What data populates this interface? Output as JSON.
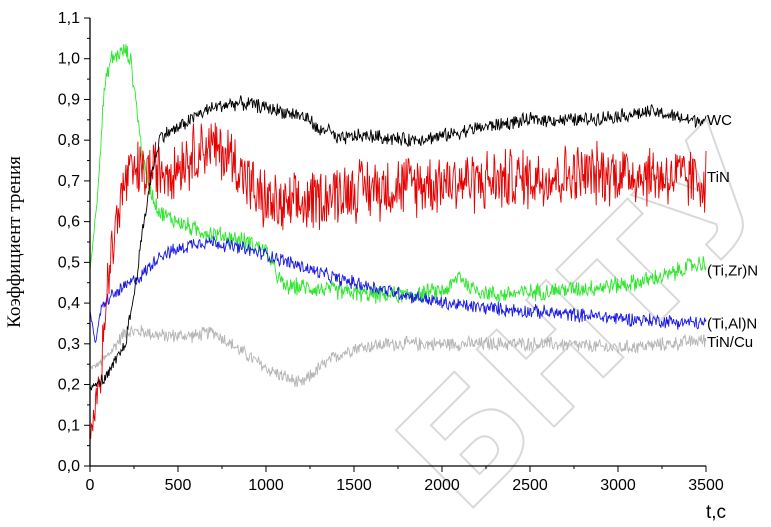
{
  "chart_data": {
    "type": "line",
    "xlabel": "t,c",
    "ylabel": "Коэффициент трения",
    "xlim": [
      0,
      3500
    ],
    "ylim": [
      0,
      1.1
    ],
    "xticks": [
      "0",
      "500",
      "1000",
      "1500",
      "2000",
      "2500",
      "3000",
      "3500"
    ],
    "yticks": [
      "0,0",
      "0,1",
      "0,2",
      "0,3",
      "0,4",
      "0,5",
      "0,6",
      "0,7",
      "0,8",
      "0,9",
      "1,0",
      "1,1"
    ],
    "grid": false,
    "watermark": "БНТУ",
    "series": [
      {
        "name": "WC",
        "color": "#000000",
        "noise": 0.02,
        "points": [
          [
            0,
            0.19
          ],
          [
            100,
            0.22
          ],
          [
            200,
            0.3
          ],
          [
            250,
            0.42
          ],
          [
            300,
            0.58
          ],
          [
            350,
            0.72
          ],
          [
            400,
            0.81
          ],
          [
            500,
            0.83
          ],
          [
            600,
            0.86
          ],
          [
            700,
            0.88
          ],
          [
            800,
            0.89
          ],
          [
            900,
            0.89
          ],
          [
            1000,
            0.88
          ],
          [
            1100,
            0.87
          ],
          [
            1200,
            0.86
          ],
          [
            1250,
            0.85
          ],
          [
            1300,
            0.82
          ],
          [
            1350,
            0.83
          ],
          [
            1400,
            0.8
          ],
          [
            1500,
            0.81
          ],
          [
            1600,
            0.81
          ],
          [
            1800,
            0.8
          ],
          [
            2000,
            0.81
          ],
          [
            2200,
            0.83
          ],
          [
            2500,
            0.85
          ],
          [
            2800,
            0.85
          ],
          [
            3000,
            0.86
          ],
          [
            3200,
            0.87
          ],
          [
            3400,
            0.85
          ],
          [
            3500,
            0.85
          ]
        ]
      },
      {
        "name": "TiN",
        "color": "#e60000",
        "noise": 0.09,
        "points": [
          [
            0,
            0.06
          ],
          [
            50,
            0.2
          ],
          [
            100,
            0.45
          ],
          [
            150,
            0.6
          ],
          [
            200,
            0.7
          ],
          [
            250,
            0.72
          ],
          [
            300,
            0.72
          ],
          [
            400,
            0.73
          ],
          [
            500,
            0.74
          ],
          [
            600,
            0.77
          ],
          [
            650,
            0.79
          ],
          [
            700,
            0.78
          ],
          [
            800,
            0.76
          ],
          [
            900,
            0.7
          ],
          [
            950,
            0.66
          ],
          [
            1000,
            0.65
          ],
          [
            1100,
            0.63
          ],
          [
            1200,
            0.64
          ],
          [
            1300,
            0.66
          ],
          [
            1500,
            0.68
          ],
          [
            1800,
            0.69
          ],
          [
            2000,
            0.7
          ],
          [
            2300,
            0.7
          ],
          [
            2600,
            0.71
          ],
          [
            3000,
            0.72
          ],
          [
            3300,
            0.71
          ],
          [
            3500,
            0.7
          ]
        ]
      },
      {
        "name": "(Ti,Zr)N",
        "color": "#2ee62e",
        "noise": 0.025,
        "points": [
          [
            0,
            0.48
          ],
          [
            40,
            0.65
          ],
          [
            80,
            0.92
          ],
          [
            120,
            1.0
          ],
          [
            160,
            1.01
          ],
          [
            200,
            1.02
          ],
          [
            230,
            1.0
          ],
          [
            260,
            0.9
          ],
          [
            300,
            0.75
          ],
          [
            350,
            0.67
          ],
          [
            400,
            0.62
          ],
          [
            500,
            0.6
          ],
          [
            600,
            0.58
          ],
          [
            700,
            0.57
          ],
          [
            800,
            0.56
          ],
          [
            900,
            0.55
          ],
          [
            1000,
            0.53
          ],
          [
            1050,
            0.48
          ],
          [
            1100,
            0.44
          ],
          [
            1200,
            0.44
          ],
          [
            1400,
            0.43
          ],
          [
            1600,
            0.42
          ],
          [
            1800,
            0.42
          ],
          [
            2000,
            0.43
          ],
          [
            2050,
            0.44
          ],
          [
            2100,
            0.47
          ],
          [
            2150,
            0.44
          ],
          [
            2300,
            0.42
          ],
          [
            2600,
            0.43
          ],
          [
            2900,
            0.44
          ],
          [
            3100,
            0.45
          ],
          [
            3300,
            0.47
          ],
          [
            3400,
            0.49
          ],
          [
            3500,
            0.5
          ]
        ]
      },
      {
        "name": "(Ti,Al)N",
        "color": "#1a1ae6",
        "noise": 0.02,
        "points": [
          [
            0,
            0.38
          ],
          [
            30,
            0.3
          ],
          [
            60,
            0.38
          ],
          [
            100,
            0.41
          ],
          [
            200,
            0.44
          ],
          [
            300,
            0.47
          ],
          [
            400,
            0.52
          ],
          [
            500,
            0.53
          ],
          [
            600,
            0.55
          ],
          [
            700,
            0.55
          ],
          [
            800,
            0.54
          ],
          [
            1000,
            0.52
          ],
          [
            1200,
            0.49
          ],
          [
            1400,
            0.46
          ],
          [
            1600,
            0.44
          ],
          [
            1800,
            0.42
          ],
          [
            2000,
            0.4
          ],
          [
            2200,
            0.39
          ],
          [
            2500,
            0.38
          ],
          [
            2800,
            0.37
          ],
          [
            3100,
            0.36
          ],
          [
            3500,
            0.35
          ]
        ]
      },
      {
        "name": "TiN/Cu",
        "color": "#b5b5b5",
        "noise": 0.02,
        "points": [
          [
            0,
            0.24
          ],
          [
            50,
            0.25
          ],
          [
            100,
            0.27
          ],
          [
            150,
            0.3
          ],
          [
            200,
            0.33
          ],
          [
            300,
            0.33
          ],
          [
            400,
            0.32
          ],
          [
            500,
            0.32
          ],
          [
            600,
            0.32
          ],
          [
            700,
            0.33
          ],
          [
            800,
            0.3
          ],
          [
            900,
            0.27
          ],
          [
            1000,
            0.24
          ],
          [
            1100,
            0.22
          ],
          [
            1200,
            0.2
          ],
          [
            1300,
            0.24
          ],
          [
            1400,
            0.27
          ],
          [
            1500,
            0.29
          ],
          [
            1700,
            0.3
          ],
          [
            2000,
            0.3
          ],
          [
            2300,
            0.3
          ],
          [
            2600,
            0.3
          ],
          [
            3000,
            0.29
          ],
          [
            3300,
            0.3
          ],
          [
            3500,
            0.31
          ]
        ]
      }
    ]
  }
}
